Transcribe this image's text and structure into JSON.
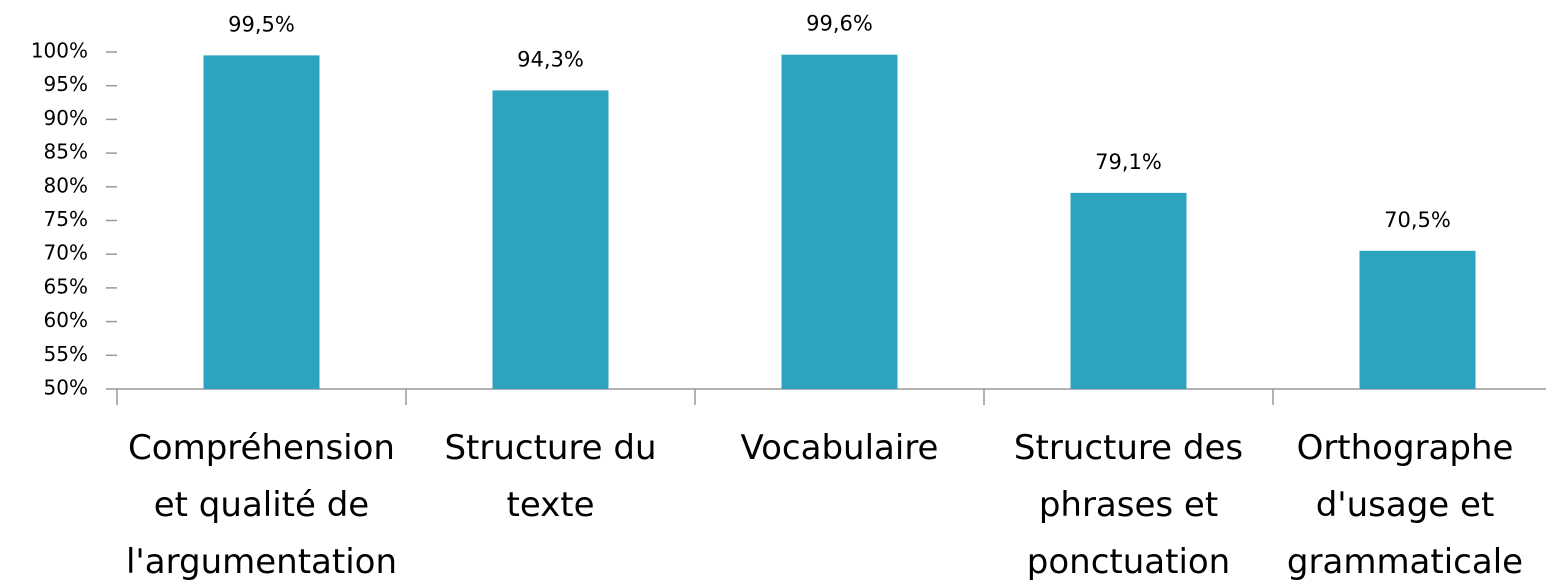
{
  "chart_data": {
    "type": "bar",
    "categories": [
      "Compréhension et qualité de l'argumentation",
      "Structure du texte",
      "Vocabulaire",
      "Structure des phrases et ponctuation",
      "Orthographe d'usage et grammaticale"
    ],
    "values": [
      99.5,
      94.3,
      99.6,
      79.1,
      70.5
    ],
    "value_labels": [
      "99,5%",
      "94,3%",
      "99,6%",
      "79,1%",
      "70,5%"
    ],
    "color": "#2ea3c0",
    "ylim": [
      50,
      100
    ],
    "yticks": [
      {
        "value": 50,
        "label": "50%"
      },
      {
        "value": 55,
        "label": "55%"
      },
      {
        "value": 60,
        "label": "60%"
      },
      {
        "value": 65,
        "label": "65%"
      },
      {
        "value": 70,
        "label": "70%"
      },
      {
        "value": 75,
        "label": "75%"
      },
      {
        "value": 80,
        "label": "80%"
      },
      {
        "value": 85,
        "label": "85%"
      },
      {
        "value": 90,
        "label": "90%"
      },
      {
        "value": 95,
        "label": "95%"
      },
      {
        "value": 100,
        "label": "100%"
      }
    ],
    "grid": false
  }
}
